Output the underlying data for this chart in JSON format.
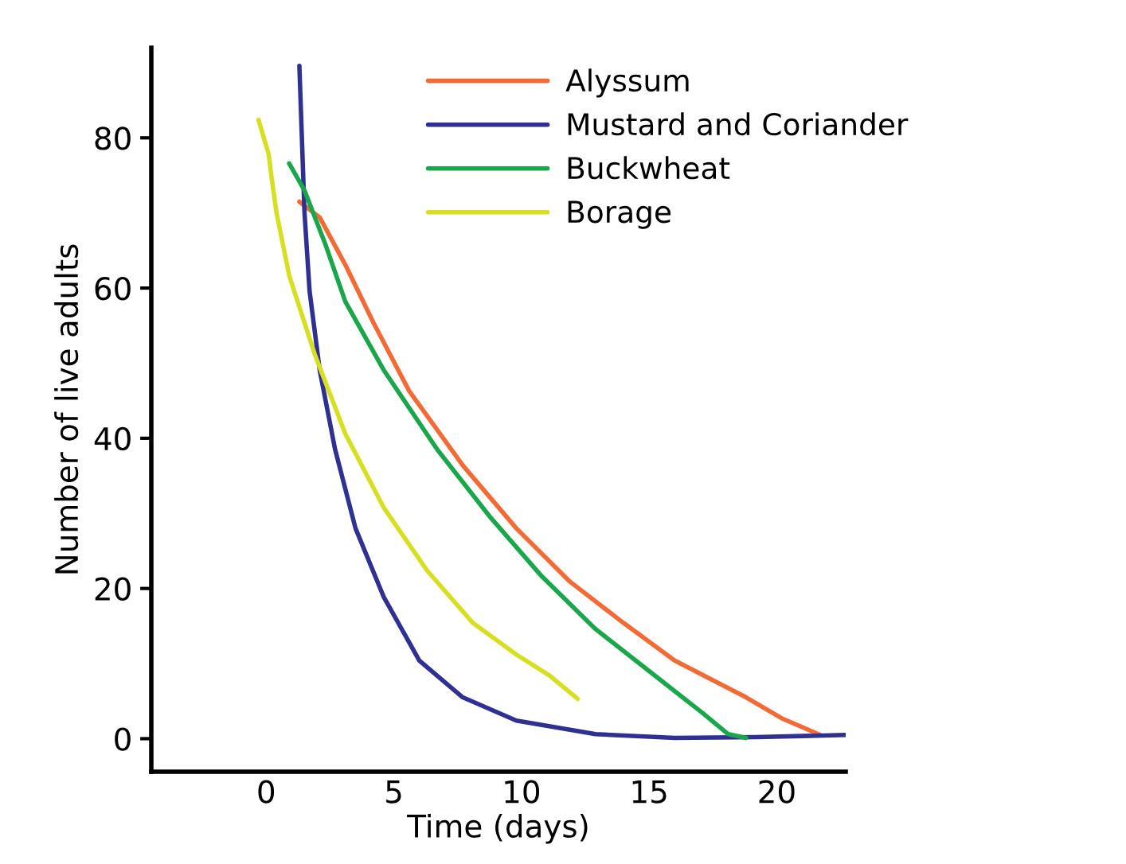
{
  "chart_data": {
    "type": "line",
    "xlabel": "Time (days)",
    "ylabel": "Number of live adults",
    "xlim": [
      -4.5,
      22.7
    ],
    "ylim": [
      -4.4,
      92
    ],
    "xticks": [
      0,
      5,
      10,
      15,
      20
    ],
    "yticks": [
      0,
      20,
      40,
      60,
      80
    ],
    "grid": false,
    "legend": "top right",
    "marker": "none",
    "line_style": "solid",
    "series": [
      {
        "name": "Alyssum",
        "color": "#f26b36",
        "x": [
          1.3,
          2.1,
          3.1,
          4.2,
          5.6,
          7.7,
          9.8,
          11.9,
          14.0,
          16.0,
          18.8,
          20.2,
          21.7
        ],
        "values": [
          71.5,
          69.4,
          63.1,
          55.4,
          46.3,
          36.4,
          28.0,
          20.9,
          15.4,
          10.4,
          5.5,
          2.7,
          0.5
        ]
      },
      {
        "name": "Mustard and Coriander",
        "color": "#2e3192",
        "x": [
          1.3,
          1.5,
          1.7,
          2.1,
          2.7,
          3.5,
          4.6,
          6.0,
          7.7,
          9.8,
          12.9,
          16.0,
          19.2,
          22.7
        ],
        "values": [
          89.6,
          70.1,
          59.6,
          49.0,
          38.5,
          28.0,
          18.9,
          10.4,
          5.5,
          2.4,
          0.6,
          0.1,
          0.2,
          0.5
        ]
      },
      {
        "name": "Buckwheat",
        "color": "#1aa64a",
        "x": [
          0.9,
          1.5,
          2.3,
          3.1,
          4.6,
          6.7,
          8.8,
          10.8,
          12.9,
          15.0,
          17.1,
          18.1,
          18.8
        ],
        "values": [
          76.6,
          73.0,
          66.0,
          58.2,
          49.1,
          38.5,
          29.4,
          21.6,
          14.6,
          9.0,
          3.4,
          0.6,
          0.1
        ]
      },
      {
        "name": "Borage",
        "color": "#d7df23",
        "x": [
          -0.3,
          0.1,
          0.2,
          0.4,
          0.9,
          1.9,
          3.1,
          4.6,
          6.3,
          8.1,
          9.8,
          11.1,
          12.2
        ],
        "values": [
          82.4,
          77.8,
          75.0,
          70.1,
          61.7,
          51.2,
          40.6,
          30.8,
          22.4,
          15.4,
          11.2,
          8.4,
          5.3
        ]
      }
    ]
  }
}
